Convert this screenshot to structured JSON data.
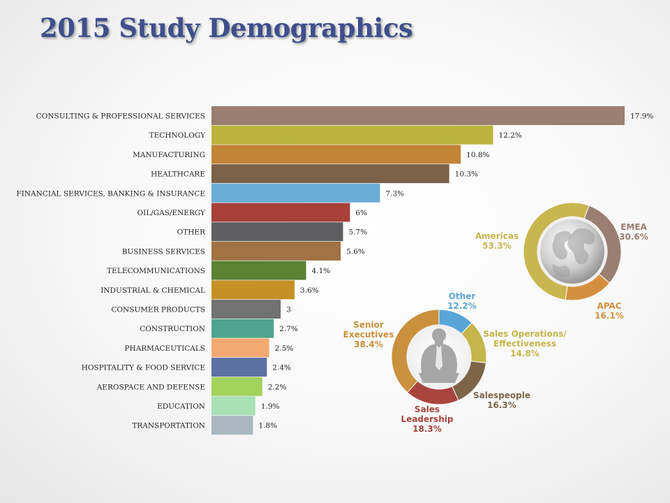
{
  "slide": {
    "title": "2015 Study Demographics"
  },
  "chart_data": [
    {
      "type": "bar",
      "orientation": "horizontal",
      "categories": [
        "CONSULTING & PROFESSIONAL SERVICES",
        "TECHNOLOGY",
        "MANUFACTURING",
        "HEALTHCARE",
        "FINANCIAL SERVICES, BANKING & INSURANCE",
        "OIL/GAS/ENERGY",
        "OTHER",
        "BUSINESS SERVICES",
        "TELECOMMUNICATIONS",
        "INDUSTRIAL & CHEMICAL",
        "CONSUMER PRODUCTS",
        "CONSTRUCTION",
        "PHARMACEUTICALS",
        "HOSPITALITY & FOOD SERVICE",
        "AEROSPACE AND DEFENSE",
        "EDUCATION",
        "TRANSPORTATION"
      ],
      "values": [
        17.9,
        12.2,
        10.8,
        10.3,
        7.3,
        6,
        5.7,
        5.6,
        4.1,
        3.6,
        3,
        2.7,
        2.5,
        2.4,
        2.2,
        1.9,
        1.8
      ],
      "value_labels": [
        "17.9%",
        "12.2%",
        "10.8%",
        "10.3%",
        "7.3%",
        "6%",
        "5.7%",
        "5.6%",
        "4.1%",
        "3.6%",
        "3",
        "2.7%",
        "2.5%",
        "2.4%",
        "2.2%",
        "1.9%",
        "1.8%"
      ],
      "colors": [
        "#9a7e72",
        "#bcb43e",
        "#c28437",
        "#7c6149",
        "#6aaed6",
        "#a8403a",
        "#5e5e60",
        "#a07244",
        "#5b8332",
        "#c79026",
        "#727272",
        "#4ea48c",
        "#f3a971",
        "#5c70a4",
        "#a2d35a",
        "#a9e0b4",
        "#aab7be"
      ]
    },
    {
      "type": "pie",
      "donut": true,
      "labels": [
        "EMEA",
        "APAC",
        "Americas"
      ],
      "label_values": [
        "30.6%",
        "16.1%",
        "53.3%"
      ],
      "values": [
        30.6,
        16.1,
        53.3
      ],
      "colors": [
        "#9a7e72",
        "#d49040",
        "#c8b650"
      ],
      "center_icon": "globe-icon"
    },
    {
      "type": "pie",
      "donut": true,
      "labels": [
        "Other",
        "Sales Operations/ Effectiveness",
        "Salespeople",
        "Sales Leadership",
        "Senior Executives"
      ],
      "label_values": [
        "12.2%",
        "14.8%",
        "16.3%",
        "18.3%",
        "38.4%"
      ],
      "values": [
        12.2,
        14.8,
        16.3,
        18.3,
        38.4
      ],
      "colors": [
        "#5aa5d8",
        "#c4b64a",
        "#7e6549",
        "#a8453c",
        "#c9903d"
      ],
      "center_icon": "business-person-icon"
    }
  ]
}
